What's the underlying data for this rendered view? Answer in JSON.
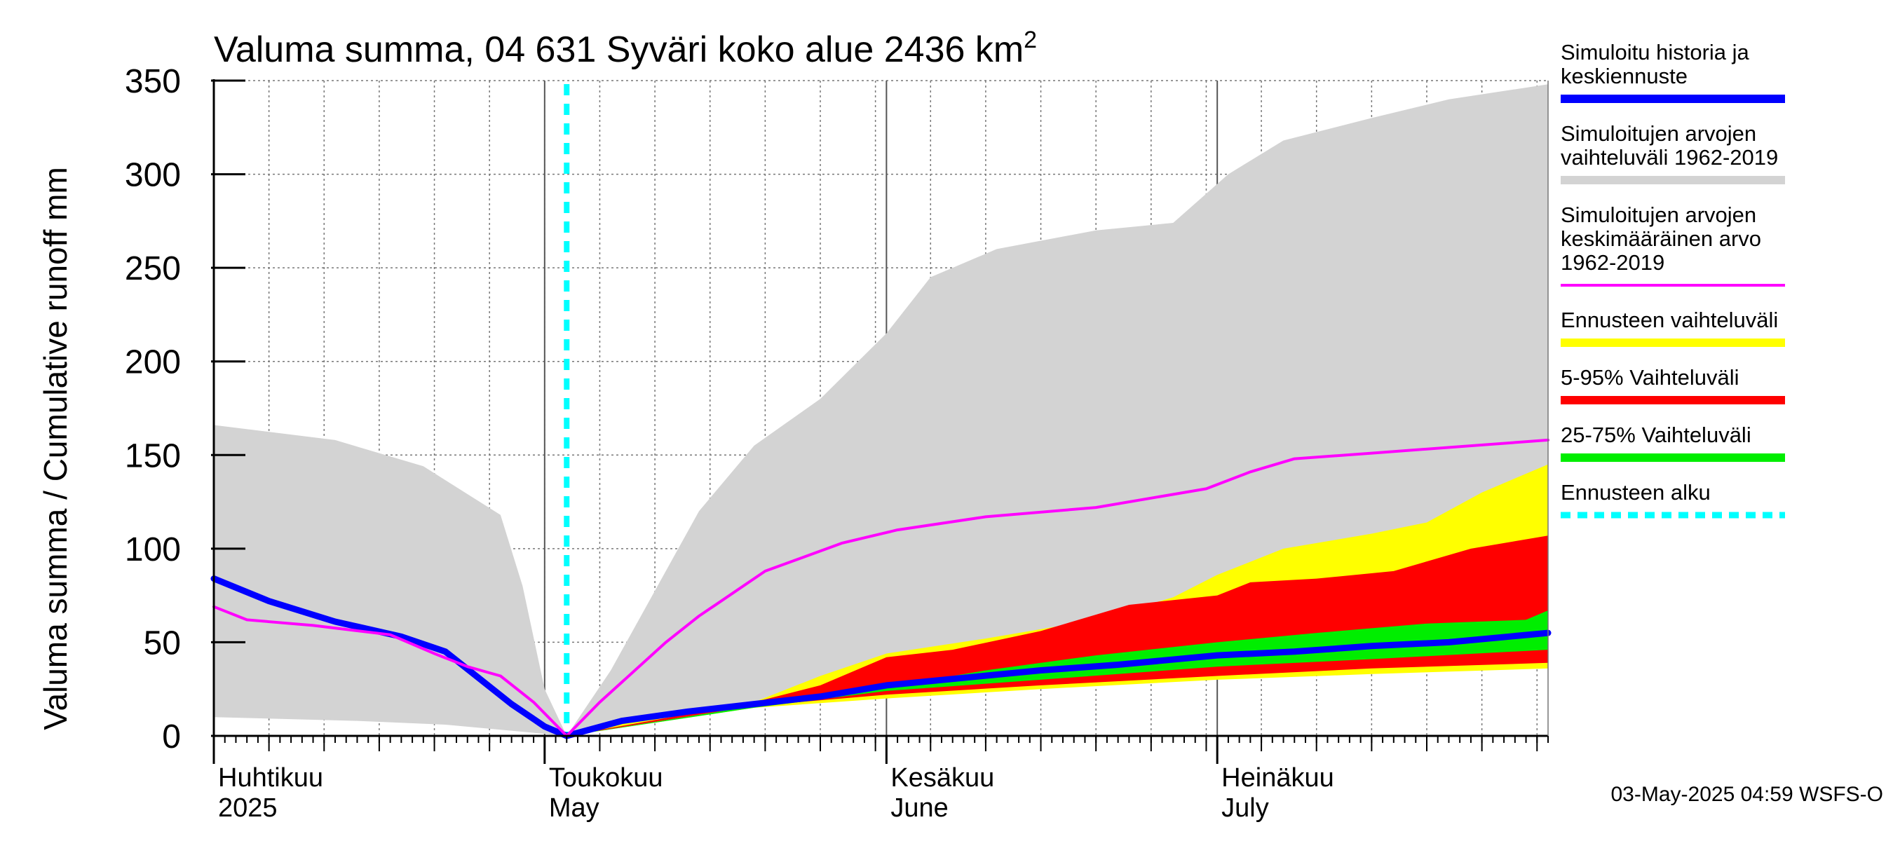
{
  "chart_data": {
    "type": "area",
    "title_main": "Valuma summa, 04 631 Syväri koko alue 2436 km",
    "title_sup": "2",
    "ylabel": "Valuma summa / Cumulative runoff    mm",
    "ylim": [
      0,
      350
    ],
    "y_ticks": [
      "0",
      "50",
      "100",
      "150",
      "200",
      "250",
      "300",
      "350"
    ],
    "x_range": [
      "2025-04-01",
      "2025-07-31"
    ],
    "grid": true,
    "legend_position": "right",
    "month_labels": [
      {
        "date": "2025-04-01",
        "fi": "Huhtikuu",
        "en": "2025"
      },
      {
        "date": "2025-05-01",
        "fi": "Toukokuu",
        "en": "May"
      },
      {
        "date": "2025-06-01",
        "fi": "Kesäkuu",
        "en": "June"
      },
      {
        "date": "2025-07-01",
        "fi": "Heinäkuu",
        "en": "July"
      }
    ],
    "forecast_start": "2025-05-03",
    "series": [
      {
        "key": "sim_range",
        "kind": "band",
        "color": "#d3d3d3",
        "upper": [
          [
            "2025-04-01",
            166
          ],
          [
            "2025-04-12",
            158
          ],
          [
            "2025-04-20",
            144
          ],
          [
            "2025-04-27",
            118
          ],
          [
            "2025-04-29",
            80
          ],
          [
            "2025-05-01",
            25
          ],
          [
            "2025-05-03",
            0
          ],
          [
            "2025-05-07",
            35
          ],
          [
            "2025-05-15",
            120
          ],
          [
            "2025-05-20",
            155
          ],
          [
            "2025-05-26",
            180
          ],
          [
            "2025-06-01",
            215
          ],
          [
            "2025-06-05",
            245
          ],
          [
            "2025-06-11",
            260
          ],
          [
            "2025-06-20",
            270
          ],
          [
            "2025-06-27",
            274
          ],
          [
            "2025-07-02",
            300
          ],
          [
            "2025-07-07",
            318
          ],
          [
            "2025-07-15",
            330
          ],
          [
            "2025-07-22",
            340
          ],
          [
            "2025-07-31",
            348
          ]
        ],
        "lower": [
          [
            "2025-04-01",
            10
          ],
          [
            "2025-04-14",
            8
          ],
          [
            "2025-04-22",
            6
          ],
          [
            "2025-05-03",
            0
          ],
          [
            "2025-05-10",
            8
          ],
          [
            "2025-06-01",
            25
          ],
          [
            "2025-07-01",
            35
          ],
          [
            "2025-07-31",
            45
          ]
        ]
      },
      {
        "key": "forecast_range",
        "kind": "band",
        "color": "#ffff00",
        "upper": [
          [
            "2025-05-03",
            0
          ],
          [
            "2025-05-10",
            10
          ],
          [
            "2025-05-20",
            18
          ],
          [
            "2025-05-26",
            32
          ],
          [
            "2025-06-01",
            44
          ],
          [
            "2025-06-10",
            52
          ],
          [
            "2025-06-20",
            62
          ],
          [
            "2025-06-27",
            74
          ],
          [
            "2025-07-01",
            86
          ],
          [
            "2025-07-07",
            100
          ],
          [
            "2025-07-15",
            108
          ],
          [
            "2025-07-20",
            114
          ],
          [
            "2025-07-25",
            130
          ],
          [
            "2025-07-31",
            145
          ]
        ],
        "lower": [
          [
            "2025-05-03",
            0
          ],
          [
            "2025-05-20",
            15
          ],
          [
            "2025-06-01",
            20
          ],
          [
            "2025-06-15",
            25
          ],
          [
            "2025-07-01",
            30
          ],
          [
            "2025-07-15",
            33
          ],
          [
            "2025-07-31",
            36
          ]
        ]
      },
      {
        "key": "p5_95",
        "kind": "band",
        "color": "#ff0000",
        "upper": [
          [
            "2025-05-03",
            0
          ],
          [
            "2025-05-20",
            18
          ],
          [
            "2025-05-26",
            27
          ],
          [
            "2025-06-01",
            42
          ],
          [
            "2025-06-07",
            46
          ],
          [
            "2025-06-15",
            56
          ],
          [
            "2025-06-23",
            70
          ],
          [
            "2025-07-01",
            75
          ],
          [
            "2025-07-04",
            82
          ],
          [
            "2025-07-10",
            84
          ],
          [
            "2025-07-17",
            88
          ],
          [
            "2025-07-24",
            100
          ],
          [
            "2025-07-31",
            107
          ]
        ],
        "lower": [
          [
            "2025-05-03",
            0
          ],
          [
            "2025-05-20",
            16
          ],
          [
            "2025-06-01",
            22
          ],
          [
            "2025-06-15",
            27
          ],
          [
            "2025-07-01",
            32
          ],
          [
            "2025-07-15",
            36
          ],
          [
            "2025-07-31",
            39
          ]
        ]
      },
      {
        "key": "p25_75",
        "kind": "band",
        "color": "#00ee00",
        "upper": [
          [
            "2025-05-03",
            0
          ],
          [
            "2025-05-20",
            16
          ],
          [
            "2025-06-01",
            26
          ],
          [
            "2025-06-10",
            35
          ],
          [
            "2025-06-20",
            43
          ],
          [
            "2025-07-01",
            50
          ],
          [
            "2025-07-10",
            55
          ],
          [
            "2025-07-20",
            60
          ],
          [
            "2025-07-29",
            62
          ],
          [
            "2025-07-31",
            67
          ]
        ],
        "lower": [
          [
            "2025-05-03",
            0
          ],
          [
            "2025-05-20",
            15
          ],
          [
            "2025-06-01",
            24
          ],
          [
            "2025-06-15",
            30
          ],
          [
            "2025-07-01",
            37
          ],
          [
            "2025-07-15",
            41
          ],
          [
            "2025-07-31",
            46
          ]
        ]
      },
      {
        "key": "sim_history",
        "kind": "line",
        "color": "#0000ff",
        "width": 9,
        "points": [
          [
            "2025-04-01",
            84
          ],
          [
            "2025-04-06",
            72
          ],
          [
            "2025-04-12",
            61
          ],
          [
            "2025-04-18",
            53
          ],
          [
            "2025-04-22",
            45
          ],
          [
            "2025-04-25",
            31
          ],
          [
            "2025-04-28",
            17
          ],
          [
            "2025-05-01",
            5
          ],
          [
            "2025-05-03",
            0
          ],
          [
            "2025-05-08",
            8
          ],
          [
            "2025-05-14",
            13
          ],
          [
            "2025-05-20",
            17
          ],
          [
            "2025-05-26",
            21
          ],
          [
            "2025-06-01",
            27
          ],
          [
            "2025-06-08",
            31
          ],
          [
            "2025-06-15",
            35
          ],
          [
            "2025-06-22",
            38
          ],
          [
            "2025-07-01",
            43
          ],
          [
            "2025-07-08",
            45
          ],
          [
            "2025-07-15",
            48
          ],
          [
            "2025-07-22",
            50
          ],
          [
            "2025-07-31",
            55
          ]
        ]
      },
      {
        "key": "sim_mean",
        "kind": "line",
        "color": "#ff00ff",
        "width": 4,
        "points": [
          [
            "2025-04-01",
            69
          ],
          [
            "2025-04-04",
            62
          ],
          [
            "2025-04-10",
            59
          ],
          [
            "2025-04-17",
            54
          ],
          [
            "2025-04-21",
            44
          ],
          [
            "2025-04-24",
            37
          ],
          [
            "2025-04-27",
            32
          ],
          [
            "2025-04-30",
            18
          ],
          [
            "2025-05-03",
            0
          ],
          [
            "2025-05-06",
            18
          ],
          [
            "2025-05-12",
            50
          ],
          [
            "2025-05-15",
            64
          ],
          [
            "2025-05-17",
            72
          ],
          [
            "2025-05-21",
            88
          ],
          [
            "2025-05-28",
            103
          ],
          [
            "2025-06-02",
            110
          ],
          [
            "2025-06-10",
            117
          ],
          [
            "2025-06-20",
            122
          ],
          [
            "2025-06-30",
            132
          ],
          [
            "2025-07-04",
            141
          ],
          [
            "2025-07-08",
            148
          ],
          [
            "2025-07-15",
            151
          ],
          [
            "2025-07-31",
            158
          ]
        ]
      }
    ],
    "forecast_start_line": {
      "color": "#00ffff"
    }
  },
  "legend": [
    {
      "lines": [
        "Simuloitu historia ja",
        "keskiennuste"
      ],
      "color": "#0000ff",
      "style": "solid"
    },
    {
      "lines": [
        "Simuloitujen arvojen",
        "vaihteluväli 1962-2019"
      ],
      "color": "#d3d3d3",
      "style": "solid"
    },
    {
      "lines": [
        "Simuloitujen arvojen",
        "keskimääräinen arvo",
        "   1962-2019"
      ],
      "color": "#ff00ff",
      "style": "thin"
    },
    {
      "lines": [
        "Ennusteen vaihteluväli"
      ],
      "color": "#ffff00",
      "style": "solid"
    },
    {
      "lines": [
        "5-95% Vaihteluväli"
      ],
      "color": "#ff0000",
      "style": "solid"
    },
    {
      "lines": [
        "25-75% Vaihteluväli"
      ],
      "color": "#00ee00",
      "style": "solid"
    },
    {
      "lines": [
        "Ennusteen alku"
      ],
      "color": "#00ffff",
      "style": "dashed"
    }
  ],
  "footer": "03-May-2025 04:59 WSFS-O"
}
